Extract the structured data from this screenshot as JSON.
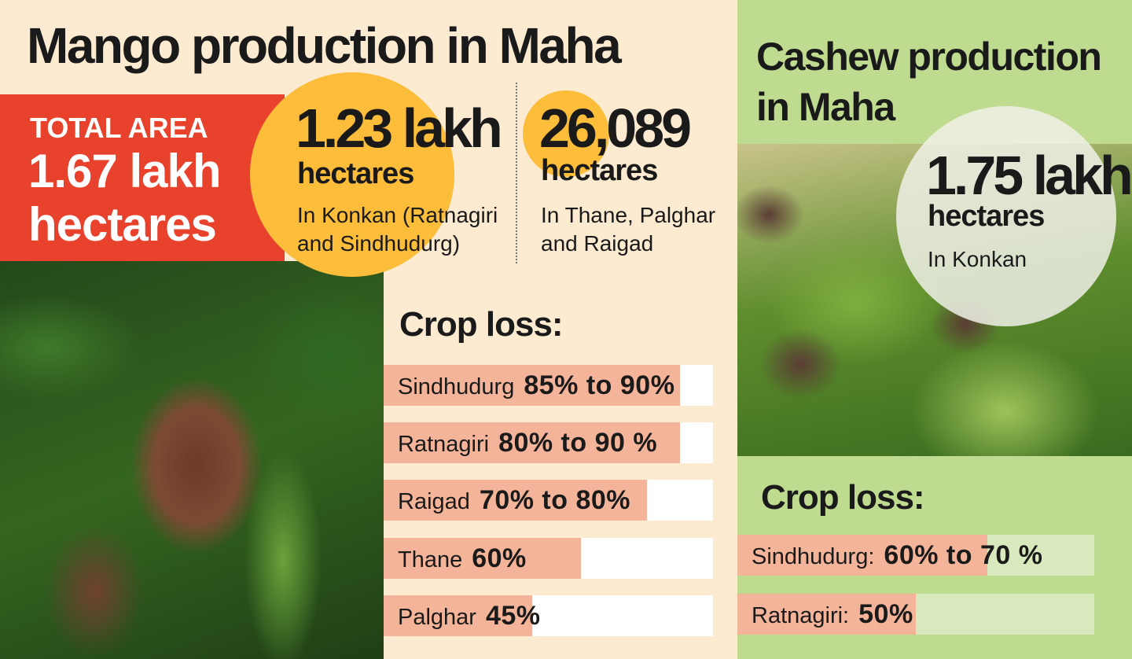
{
  "mango": {
    "title": "Mango production in Maha",
    "total_area": {
      "label": "TOTAL AREA",
      "value": "1.67 lakh",
      "unit": "hectares"
    },
    "konkan": {
      "value": "1.23 lakh",
      "unit": "hectares",
      "note": "In Konkan (Ratnagiri and Sindhudurg)"
    },
    "north": {
      "value": "26,089",
      "unit": "hectares",
      "note": "In Thane, Palghar and Raigad"
    },
    "crop_loss": {
      "title": "Crop loss:",
      "rows": [
        {
          "region": "Sindhudurg",
          "label": "85% to 90%",
          "value": 90
        },
        {
          "region": "Ratnagiri",
          "label": "80% to 90 %",
          "value": 90
        },
        {
          "region": "Raigad",
          "label": "70% to 80%",
          "value": 80
        },
        {
          "region": "Thane",
          "label": "60%",
          "value": 60
        },
        {
          "region": "Palghar",
          "label": "45%",
          "value": 45
        }
      ]
    }
  },
  "cashew": {
    "title": "Cashew production in Maha",
    "konkan": {
      "value": "1.75 lakh",
      "unit": "hectares",
      "note": "In Konkan"
    },
    "crop_loss": {
      "title": "Crop loss:",
      "rows": [
        {
          "region": "Sindhudurg:",
          "label": "60% to 70 %",
          "value": 70
        },
        {
          "region": "Ratnagiri:",
          "label": "50%",
          "value": 50
        }
      ]
    }
  }
}
